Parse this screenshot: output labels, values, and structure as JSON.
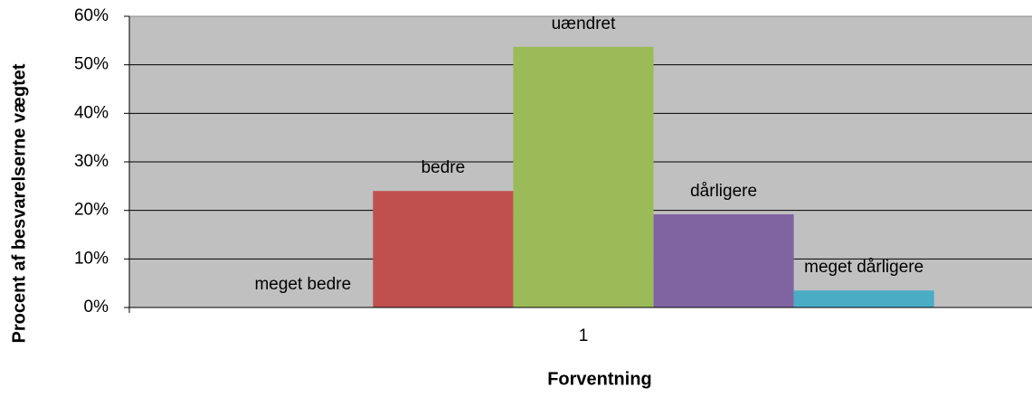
{
  "chart_data": {
    "type": "bar",
    "x_label": "Forventning",
    "y_label": "Procent af besvarelserne vægtet",
    "categories": [
      "1"
    ],
    "series": [
      {
        "name": "meget bedre",
        "color": "#4f81bd",
        "values": [
          0
        ]
      },
      {
        "name": "bedre",
        "color": "#c0504d",
        "values": [
          24.0
        ]
      },
      {
        "name": "uændret",
        "color": "#9bbb59",
        "values": [
          53.7
        ]
      },
      {
        "name": "dårligere",
        "color": "#8064a2",
        "values": [
          19.2
        ]
      },
      {
        "name": "meget dårligere",
        "color": "#4bacc6",
        "values": [
          3.5
        ]
      }
    ],
    "ylim": [
      0,
      60
    ],
    "yticks": [
      {
        "value": 0,
        "label": "0%"
      },
      {
        "value": 10,
        "label": "10%"
      },
      {
        "value": 20,
        "label": "20%"
      },
      {
        "value": 30,
        "label": "30%"
      },
      {
        "value": 40,
        "label": "40%"
      },
      {
        "value": 50,
        "label": "50%"
      },
      {
        "value": 60,
        "label": "60%"
      }
    ],
    "grid": true,
    "background": "#c0c0c0"
  }
}
